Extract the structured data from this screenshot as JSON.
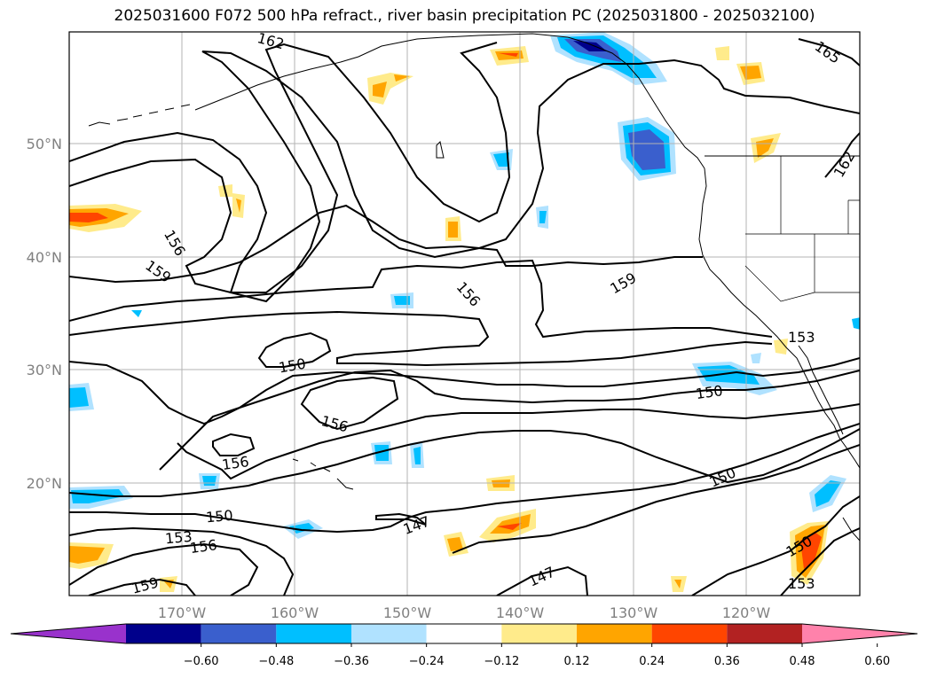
{
  "title": "2025031600 F072 500 hPa refract., river basin precipitation PC (2025031800 - 2025032100)",
  "lat_labels": [
    "50°N",
    "40°N",
    "30°N",
    "20°N"
  ],
  "lon_labels": [
    "170°W",
    "160°W",
    "150°W",
    "140°W",
    "130°W",
    "120°W"
  ],
  "contour_labels": [
    "162",
    "165",
    "162",
    "156",
    "159",
    "156",
    "159",
    "153",
    "150",
    "150",
    "156",
    "156",
    "150",
    "153",
    "156",
    "147",
    "150",
    "147",
    "159",
    "150",
    "153"
  ],
  "colorbar": {
    "ticks": [
      "−0.60",
      "−0.48",
      "−0.36",
      "−0.24",
      "−0.12",
      "0.12",
      "0.24",
      "0.36",
      "0.48",
      "0.60"
    ],
    "colors": [
      "#9932cc",
      "#00008b",
      "#3a5fcd",
      "#00bfff",
      "#b0e2ff",
      "#ffffff",
      "#ffeb8b",
      "#ffa500",
      "#ff4500",
      "#b22222",
      "#ff82ab"
    ]
  }
}
